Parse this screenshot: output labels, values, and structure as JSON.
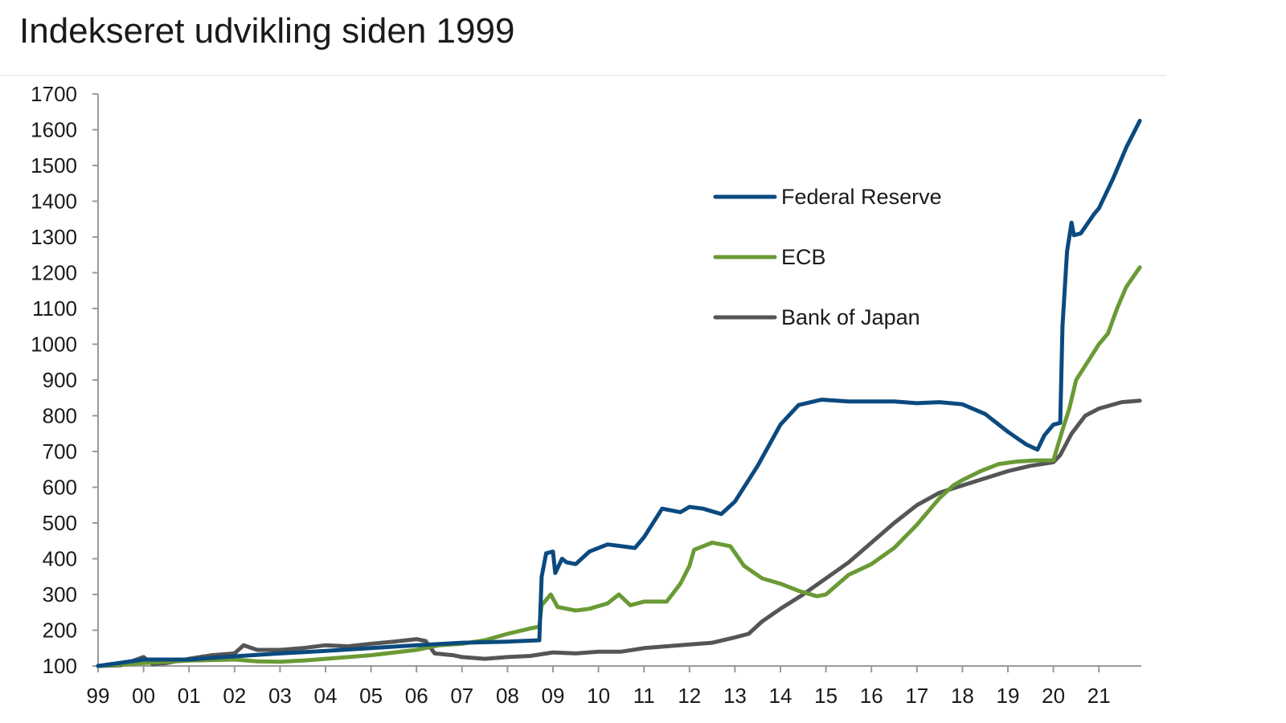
{
  "chart_data": {
    "type": "line",
    "title": "Indekseret udvikling siden 1999",
    "xlabel": "",
    "ylabel": "",
    "ylim": [
      100,
      1700
    ],
    "yticks": [
      100,
      200,
      300,
      400,
      500,
      600,
      700,
      800,
      900,
      1000,
      1100,
      1200,
      1300,
      1400,
      1500,
      1600,
      1700
    ],
    "xlim": [
      1999,
      2021.9
    ],
    "xticks": [
      {
        "year": 1999,
        "label": "99"
      },
      {
        "year": 2000,
        "label": "00"
      },
      {
        "year": 2001,
        "label": "01"
      },
      {
        "year": 2002,
        "label": "02"
      },
      {
        "year": 2003,
        "label": "03"
      },
      {
        "year": 2004,
        "label": "04"
      },
      {
        "year": 2005,
        "label": "05"
      },
      {
        "year": 2006,
        "label": "06"
      },
      {
        "year": 2007,
        "label": "07"
      },
      {
        "year": 2008,
        "label": "08"
      },
      {
        "year": 2009,
        "label": "09"
      },
      {
        "year": 2010,
        "label": "10"
      },
      {
        "year": 2011,
        "label": "11"
      },
      {
        "year": 2012,
        "label": "12"
      },
      {
        "year": 2013,
        "label": "13"
      },
      {
        "year": 2014,
        "label": "14"
      },
      {
        "year": 2015,
        "label": "15"
      },
      {
        "year": 2016,
        "label": "16"
      },
      {
        "year": 2017,
        "label": "17"
      },
      {
        "year": 2018,
        "label": "18"
      },
      {
        "year": 2019,
        "label": "19"
      },
      {
        "year": 2020,
        "label": "20"
      },
      {
        "year": 2021,
        "label": "21"
      }
    ],
    "grid": false,
    "legend": "upper-middle-right",
    "series": [
      {
        "name": "Federal Reserve",
        "color": "#0b4a7f",
        "points": [
          [
            1999.0,
            100
          ],
          [
            2000.0,
            118
          ],
          [
            2001.0,
            118
          ],
          [
            2002.0,
            127
          ],
          [
            2003.0,
            135
          ],
          [
            2004.0,
            142
          ],
          [
            2005.0,
            150
          ],
          [
            2006.0,
            158
          ],
          [
            2007.0,
            165
          ],
          [
            2008.0,
            168
          ],
          [
            2008.7,
            172
          ],
          [
            2008.75,
            350
          ],
          [
            2008.85,
            415
          ],
          [
            2009.0,
            420
          ],
          [
            2009.05,
            360
          ],
          [
            2009.2,
            400
          ],
          [
            2009.3,
            390
          ],
          [
            2009.5,
            385
          ],
          [
            2009.8,
            420
          ],
          [
            2010.2,
            440
          ],
          [
            2010.5,
            435
          ],
          [
            2010.8,
            430
          ],
          [
            2011.0,
            460
          ],
          [
            2011.4,
            540
          ],
          [
            2011.8,
            530
          ],
          [
            2012.0,
            545
          ],
          [
            2012.3,
            540
          ],
          [
            2012.7,
            525
          ],
          [
            2013.0,
            560
          ],
          [
            2013.5,
            660
          ],
          [
            2014.0,
            775
          ],
          [
            2014.4,
            830
          ],
          [
            2014.9,
            845
          ],
          [
            2015.5,
            840
          ],
          [
            2016.0,
            840
          ],
          [
            2016.5,
            840
          ],
          [
            2017.0,
            835
          ],
          [
            2017.5,
            838
          ],
          [
            2018.0,
            832
          ],
          [
            2018.5,
            805
          ],
          [
            2019.0,
            755
          ],
          [
            2019.4,
            720
          ],
          [
            2019.65,
            705
          ],
          [
            2019.8,
            745
          ],
          [
            2020.0,
            775
          ],
          [
            2020.15,
            780
          ],
          [
            2020.2,
            1050
          ],
          [
            2020.3,
            1260
          ],
          [
            2020.4,
            1340
          ],
          [
            2020.45,
            1305
          ],
          [
            2020.6,
            1310
          ],
          [
            2020.9,
            1365
          ],
          [
            2021.0,
            1380
          ],
          [
            2021.3,
            1460
          ],
          [
            2021.6,
            1550
          ],
          [
            2021.9,
            1625
          ]
        ]
      },
      {
        "name": "ECB",
        "color": "#6a9a35",
        "points": [
          [
            1999.0,
            100
          ],
          [
            2000.0,
            108
          ],
          [
            2001.0,
            115
          ],
          [
            2002.0,
            118
          ],
          [
            2002.5,
            113
          ],
          [
            2003.0,
            112
          ],
          [
            2003.5,
            115
          ],
          [
            2004.0,
            120
          ],
          [
            2005.0,
            130
          ],
          [
            2006.0,
            145
          ],
          [
            2006.5,
            158
          ],
          [
            2007.0,
            162
          ],
          [
            2007.5,
            172
          ],
          [
            2008.0,
            190
          ],
          [
            2008.5,
            205
          ],
          [
            2008.7,
            210
          ],
          [
            2008.75,
            270
          ],
          [
            2008.95,
            300
          ],
          [
            2009.1,
            265
          ],
          [
            2009.5,
            255
          ],
          [
            2009.8,
            260
          ],
          [
            2010.2,
            275
          ],
          [
            2010.45,
            300
          ],
          [
            2010.7,
            270
          ],
          [
            2011.0,
            280
          ],
          [
            2011.5,
            280
          ],
          [
            2011.8,
            330
          ],
          [
            2012.0,
            380
          ],
          [
            2012.1,
            425
          ],
          [
            2012.5,
            445
          ],
          [
            2012.9,
            435
          ],
          [
            2013.2,
            380
          ],
          [
            2013.6,
            345
          ],
          [
            2014.0,
            330
          ],
          [
            2014.4,
            310
          ],
          [
            2014.8,
            295
          ],
          [
            2015.0,
            300
          ],
          [
            2015.5,
            355
          ],
          [
            2016.0,
            385
          ],
          [
            2016.5,
            430
          ],
          [
            2017.0,
            495
          ],
          [
            2017.5,
            570
          ],
          [
            2017.8,
            605
          ],
          [
            2018.0,
            620
          ],
          [
            2018.4,
            645
          ],
          [
            2018.8,
            665
          ],
          [
            2019.2,
            672
          ],
          [
            2019.6,
            675
          ],
          [
            2020.0,
            675
          ],
          [
            2020.2,
            760
          ],
          [
            2020.35,
            820
          ],
          [
            2020.5,
            900
          ],
          [
            2020.8,
            960
          ],
          [
            2021.0,
            1000
          ],
          [
            2021.2,
            1030
          ],
          [
            2021.4,
            1100
          ],
          [
            2021.6,
            1160
          ],
          [
            2021.9,
            1215
          ]
        ]
      },
      {
        "name": "Bank of Japan",
        "color": "#555555",
        "points": [
          [
            1999.0,
            100
          ],
          [
            1999.5,
            102
          ],
          [
            2000.0,
            125
          ],
          [
            2000.2,
            105
          ],
          [
            2000.5,
            108
          ],
          [
            2001.0,
            120
          ],
          [
            2001.5,
            130
          ],
          [
            2002.0,
            135
          ],
          [
            2002.2,
            158
          ],
          [
            2002.5,
            145
          ],
          [
            2003.0,
            145
          ],
          [
            2003.5,
            150
          ],
          [
            2004.0,
            158
          ],
          [
            2004.5,
            155
          ],
          [
            2005.0,
            162
          ],
          [
            2005.5,
            168
          ],
          [
            2006.0,
            175
          ],
          [
            2006.2,
            170
          ],
          [
            2006.4,
            135
          ],
          [
            2006.8,
            130
          ],
          [
            2007.0,
            125
          ],
          [
            2007.5,
            120
          ],
          [
            2008.0,
            125
          ],
          [
            2008.5,
            128
          ],
          [
            2009.0,
            138
          ],
          [
            2009.5,
            135
          ],
          [
            2010.0,
            140
          ],
          [
            2010.5,
            140
          ],
          [
            2011.0,
            150
          ],
          [
            2011.5,
            155
          ],
          [
            2012.0,
            160
          ],
          [
            2012.5,
            165
          ],
          [
            2013.0,
            180
          ],
          [
            2013.3,
            190
          ],
          [
            2013.6,
            225
          ],
          [
            2014.0,
            260
          ],
          [
            2014.5,
            300
          ],
          [
            2015.0,
            345
          ],
          [
            2015.5,
            390
          ],
          [
            2016.0,
            445
          ],
          [
            2016.5,
            500
          ],
          [
            2017.0,
            550
          ],
          [
            2017.5,
            585
          ],
          [
            2018.0,
            605
          ],
          [
            2018.5,
            625
          ],
          [
            2019.0,
            645
          ],
          [
            2019.5,
            660
          ],
          [
            2020.0,
            670
          ],
          [
            2020.15,
            690
          ],
          [
            2020.4,
            750
          ],
          [
            2020.7,
            800
          ],
          [
            2021.0,
            820
          ],
          [
            2021.5,
            838
          ],
          [
            2021.9,
            842
          ]
        ]
      }
    ]
  }
}
